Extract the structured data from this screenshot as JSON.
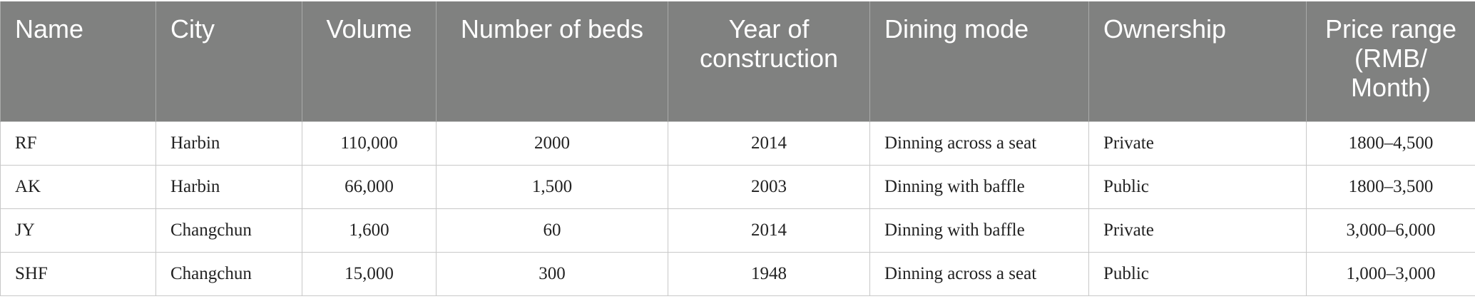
{
  "table": {
    "header": [
      "Name",
      "City",
      "Volume",
      "Number of beds",
      "Year of construction",
      "Dining mode",
      "Ownership",
      "Price range (RMB/ Month)"
    ],
    "rows": [
      [
        "RF",
        "Harbin",
        "110,000",
        "2000",
        "2014",
        "Dinning across a seat",
        "Private",
        "1800–4,500"
      ],
      [
        "AK",
        "Harbin",
        "66,000",
        "1,500",
        "2003",
        "Dinning with baffle",
        "Public",
        "1800–3,500"
      ],
      [
        "JY",
        "Changchun",
        "1,600",
        "60",
        "2014",
        "Dinning with baffle",
        "Private",
        "3,000–6,000"
      ],
      [
        "SHF",
        "Changchun",
        "15,000",
        "300",
        "1948",
        "Dinning across a seat",
        "Public",
        "1,000–3,000"
      ]
    ]
  }
}
